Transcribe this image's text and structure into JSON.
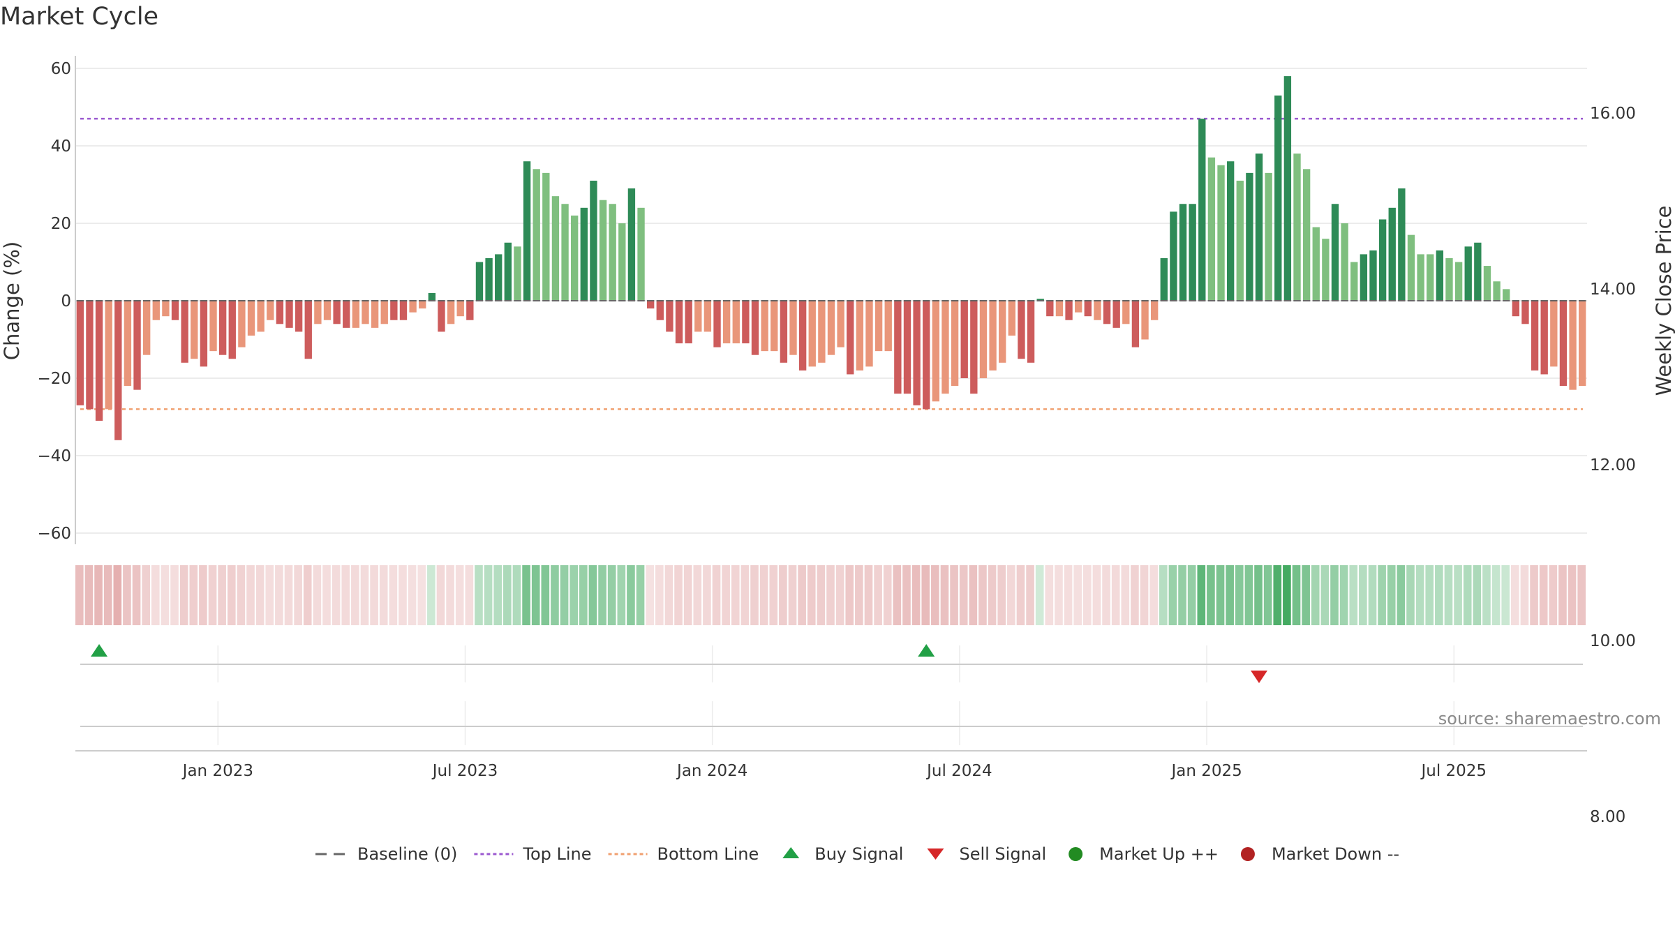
{
  "title": "Market Cycle",
  "source": "source: sharemaestro.com",
  "colors": {
    "strong_up": "#2e8b57",
    "weak_up": "#7fbf7f",
    "strong_down": "#cd5c5c",
    "weak_down": "#e9967a",
    "top_line": "#9b59d0",
    "bottom_line": "#f0a070",
    "baseline": "#666666",
    "buy": "#22a046",
    "sell": "#d62728",
    "market_up": "#228b22",
    "market_down": "#b22222",
    "grid": "#e6e6e6"
  },
  "chart_data": {
    "type": "bar",
    "title": "Market Cycle",
    "ylabel": "Change (%)",
    "y2label": "Weekly Close Price",
    "ylim": [
      -60,
      60
    ],
    "yticks": [
      60,
      40,
      20,
      0,
      -20,
      -40,
      -60
    ],
    "ytick_labels": [
      "60",
      "40",
      "20",
      "0",
      "−20",
      "−40",
      "−60"
    ],
    "y2ticks": [
      16,
      14,
      12,
      10,
      8
    ],
    "y2tick_labels": [
      "16.00",
      "14.00",
      "12.00",
      "10.00",
      "8.00"
    ],
    "top_line": 47,
    "bottom_line": -28,
    "x_ticks": [
      "Jan 2023",
      "Jul 2023",
      "Jan 2024",
      "Jul 2024",
      "Jan 2025",
      "Jul 2025"
    ],
    "x_tick_weeks": [
      15,
      41,
      67,
      93,
      119,
      145
    ],
    "values": [
      -27,
      -28,
      -31,
      -28,
      -36,
      -22,
      -23,
      -14,
      -5,
      -4,
      -5,
      -16,
      -15,
      -17,
      -13,
      -14,
      -15,
      -12,
      -9,
      -8,
      -5,
      -6,
      -7,
      -8,
      -15,
      -6,
      -5,
      -6,
      -7,
      -7,
      -6,
      -7,
      -6,
      -5,
      -5,
      -3,
      -2,
      2,
      -8,
      -6,
      -4,
      -5,
      10,
      11,
      12,
      15,
      14,
      36,
      34,
      33,
      27,
      25,
      22,
      24,
      31,
      26,
      25,
      20,
      29,
      24,
      -2,
      -5,
      -8,
      -11,
      -11,
      -8,
      -8,
      -12,
      -11,
      -11,
      -11,
      -14,
      -13,
      -13,
      -16,
      -14,
      -18,
      -17,
      -16,
      -14,
      -12,
      -19,
      -18,
      -17,
      -13,
      -13,
      -24,
      -24,
      -27,
      -28,
      -26,
      -24,
      -22,
      -20,
      -24,
      -20,
      -18,
      -16,
      -9,
      -15,
      -16,
      0.5,
      -4,
      -4,
      -5,
      -3,
      -4,
      -5,
      -6,
      -7,
      -6,
      -12,
      -10,
      -5,
      11,
      23,
      25,
      25,
      47,
      37,
      35,
      36,
      31,
      33,
      38,
      33,
      53,
      58,
      38,
      34,
      19,
      16,
      25,
      20,
      10,
      12,
      13,
      21,
      24,
      29,
      17,
      12,
      12,
      13,
      11,
      10,
      14,
      15,
      9,
      5,
      3,
      -4,
      -6,
      -18,
      -19,
      -17,
      -22,
      -23,
      -22
    ],
    "strength": [
      1,
      1,
      1,
      0,
      1,
      0,
      1,
      0,
      0,
      0,
      1,
      1,
      0,
      1,
      0,
      1,
      1,
      0,
      0,
      0,
      0,
      1,
      1,
      1,
      1,
      0,
      0,
      1,
      1,
      0,
      0,
      0,
      0,
      1,
      1,
      0,
      0,
      1,
      1,
      0,
      0,
      1,
      1,
      1,
      1,
      1,
      0,
      1,
      0,
      0,
      0,
      0,
      0,
      1,
      1,
      0,
      0,
      0,
      1,
      0,
      1,
      1,
      1,
      1,
      1,
      0,
      0,
      1,
      0,
      0,
      1,
      1,
      0,
      0,
      1,
      0,
      1,
      0,
      0,
      0,
      0,
      1,
      0,
      0,
      0,
      0,
      1,
      1,
      1,
      1,
      0,
      0,
      0,
      1,
      1,
      0,
      0,
      0,
      0,
      1,
      1,
      1,
      1,
      0,
      1,
      0,
      1,
      0,
      1,
      1,
      0,
      1,
      0,
      0,
      1,
      1,
      1,
      1,
      1,
      0,
      0,
      1,
      0,
      1,
      1,
      0,
      1,
      1,
      0,
      0,
      0,
      0,
      1,
      0,
      0,
      1,
      1,
      1,
      1,
      1,
      0,
      0,
      0,
      1,
      0,
      0,
      1,
      1,
      0,
      0,
      0,
      1,
      1,
      1,
      1,
      0,
      1,
      0
    ],
    "buy_signals": [
      2,
      89
    ],
    "sell_signals": [
      124
    ],
    "legend": [
      {
        "label": "Baseline (0)",
        "symbol": "dash",
        "color": "#666666"
      },
      {
        "label": "Top Line",
        "symbol": "dot-line",
        "color": "#9b59d0"
      },
      {
        "label": "Bottom Line",
        "symbol": "dot-line",
        "color": "#f0a070"
      },
      {
        "label": "Buy Signal",
        "symbol": "triangle-up",
        "color": "#22a046"
      },
      {
        "label": "Sell Signal",
        "symbol": "triangle-down",
        "color": "#d62728"
      },
      {
        "label": "Market Up ++",
        "symbol": "circle",
        "color": "#228b22"
      },
      {
        "label": "Market Down --",
        "symbol": "circle",
        "color": "#b22222"
      }
    ],
    "legend_position": "bottom-center"
  }
}
